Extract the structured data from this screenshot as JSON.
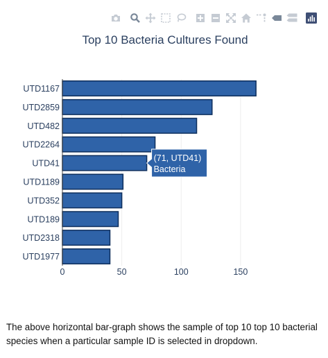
{
  "modebar": {
    "buttons": [
      {
        "name": "camera-icon",
        "title": "Download plot as a png"
      },
      {
        "name": "zoom-icon",
        "title": "Zoom"
      },
      {
        "name": "pan-icon",
        "title": "Pan"
      },
      {
        "name": "box-select-icon",
        "title": "Box Select"
      },
      {
        "name": "lasso-select-icon",
        "title": "Lasso Select"
      },
      {
        "name": "zoom-in-icon",
        "title": "Zoom in"
      },
      {
        "name": "zoom-out-icon",
        "title": "Zoom out"
      },
      {
        "name": "autoscale-icon",
        "title": "Autoscale"
      },
      {
        "name": "reset-axes-icon",
        "title": "Reset axes"
      },
      {
        "name": "spike-lines-icon",
        "title": "Toggle Spike Lines"
      },
      {
        "name": "hover-closest-icon",
        "title": "Show closest data on hover"
      },
      {
        "name": "hover-compare-icon",
        "title": "Compare data on hover"
      },
      {
        "name": "plotly-logo-icon",
        "title": "Produced with Plotly"
      }
    ],
    "icon_color": "#c5cbd3",
    "active_color": "#7a8899",
    "logo_color": "#3f4f75"
  },
  "chart_data": {
    "type": "bar",
    "orientation": "horizontal",
    "title": "Top 10 Bacteria Cultures Found",
    "categories": [
      "UTD1167",
      "UTD2859",
      "UTD482",
      "UTD2264",
      "UTD41",
      "UTD1189",
      "UTD352",
      "UTD189",
      "UTD2318",
      "UTD1977"
    ],
    "values": [
      163,
      126,
      113,
      78,
      71,
      51,
      50,
      47,
      40,
      40
    ],
    "series_name": "Bacteria",
    "xlim": [
      0,
      167
    ],
    "xticks": [
      0,
      50,
      100,
      150
    ],
    "xgrid": true,
    "bar_color": "#2f63a8",
    "bar_border_color": "#0d2e5c",
    "hover": {
      "index": 4,
      "text": "(71, UTD41)",
      "name": "Bacteria"
    }
  },
  "caption": "The above horizontal bar-graph shows the sample of top 10 top 10 bacterial species when a particular sample ID is selected in dropdown."
}
